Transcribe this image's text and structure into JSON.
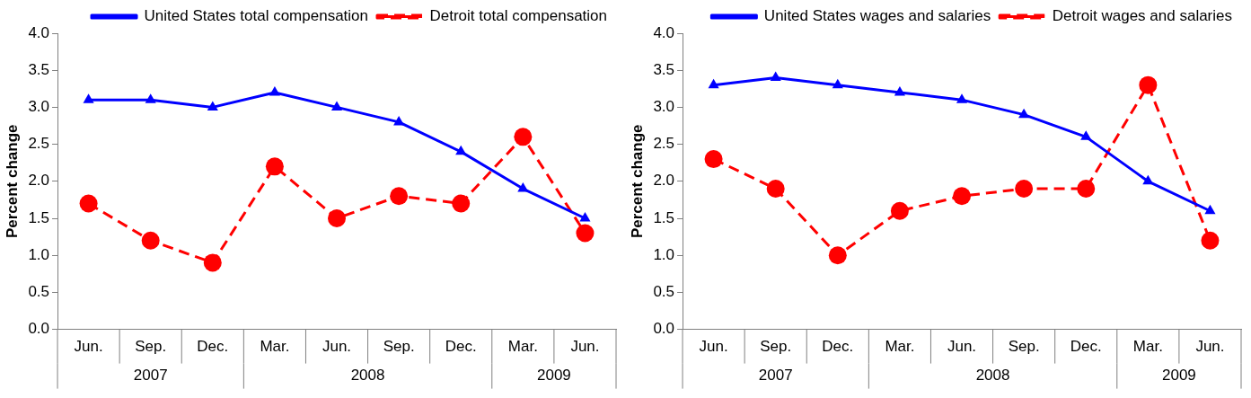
{
  "chart_data": [
    {
      "type": "line",
      "ylabel": "Percent change",
      "categories": [
        "Jun.",
        "Sep.",
        "Dec.",
        "Mar.",
        "Jun.",
        "Sep.",
        "Dec.",
        "Mar.",
        "Jun."
      ],
      "annotations": [
        "2007",
        "2008",
        "2009"
      ],
      "ylim": [
        0,
        4
      ],
      "yticks": [
        {
          "value": 0,
          "label": "0.0"
        },
        0.5,
        {
          "value": 1,
          "label": "1.0"
        },
        1.5,
        {
          "value": 2,
          "label": "2.0"
        },
        2.5,
        {
          "value": 3,
          "label": "3.0"
        },
        3.5,
        {
          "value": 4,
          "label": "4.0"
        }
      ],
      "grid": false,
      "legend": "top right",
      "series": [
        {
          "name": "United States total compensation",
          "color": "#0000ff",
          "marker": "triangle",
          "line_style": "solid",
          "values": [
            3.1,
            3.1,
            3.0,
            3.2,
            3.0,
            2.8,
            2.4,
            1.9,
            1.5
          ]
        },
        {
          "name": "Detroit total compensation",
          "color": "#ff0000",
          "marker": "circle",
          "line_style": "dashed",
          "values": [
            1.7,
            1.2,
            0.9,
            2.2,
            1.5,
            1.8,
            1.7,
            2.6,
            1.3
          ]
        }
      ]
    },
    {
      "type": "line",
      "ylabel": "Percent change",
      "categories": [
        "Jun.",
        "Sep.",
        "Dec.",
        "Mar.",
        "Jun.",
        "Sep.",
        "Dec.",
        "Mar.",
        "Jun."
      ],
      "annotations": [
        "2007",
        "2008",
        "2009"
      ],
      "ylim": [
        0,
        4
      ],
      "yticks": [
        {
          "value": 0,
          "label": "0.0"
        },
        0.5,
        {
          "value": 1,
          "label": "1.0"
        },
        1.5,
        {
          "value": 2,
          "label": "2.0"
        },
        2.5,
        {
          "value": 3,
          "label": "3.0"
        },
        3.5,
        {
          "value": 4,
          "label": "4.0"
        }
      ],
      "grid": false,
      "legend": "top right",
      "series": [
        {
          "name": "United States wages and salaries",
          "color": "#0000ff",
          "marker": "triangle",
          "line_style": "solid",
          "values": [
            3.3,
            3.4,
            3.3,
            3.2,
            3.1,
            2.9,
            2.6,
            2.0,
            1.6
          ]
        },
        {
          "name": "Detroit wages and salaries",
          "color": "#ff0000",
          "marker": "circle",
          "line_style": "dashed",
          "values": [
            2.3,
            1.9,
            1.0,
            1.6,
            1.8,
            1.9,
            1.9,
            3.3,
            1.2
          ]
        }
      ]
    }
  ]
}
